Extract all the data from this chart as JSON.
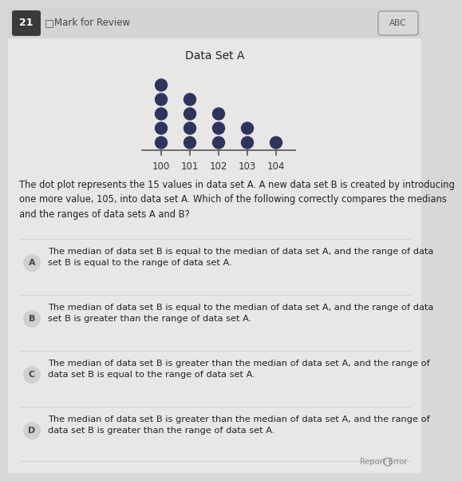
{
  "title": "Data Set A",
  "question_number": "21",
  "dot_data": {
    "100": 5,
    "101": 4,
    "102": 3,
    "103": 2,
    "104": 1
  },
  "x_tick_labels": [
    "100",
    "101",
    "102",
    "103",
    "104"
  ],
  "dot_color": "#2e3460",
  "background_color": "#d8d8d8",
  "page_color": "#e8e7e5",
  "header_bg": "#d0d0d0",
  "white": "#ffffff",
  "option_labels": [
    "A",
    "B",
    "C",
    "D"
  ],
  "option_texts": [
    "The median of data set B is equal to the median of data set A, and the range of data\nset B is equal to the range of data set A.",
    "The median of data set B is equal to the median of data set A, and the range of data\nset B is greater than the range of data set A.",
    "The median of data set B is greater than the median of data set A, and the range of\ndata set B is equal to the range of data set A.",
    "The median of data set B is greater than the median of data set A, and the range of\ndata set B is greater than the range of data set A."
  ],
  "intro_text": "The dot plot represents the 15 values in data set A. A new data set B is created by introducing\none more value, 105, into data set A. Which of the following correctly compares the medians\nand the ranges of data sets A and B?",
  "mark_review_text": "Mark for Review",
  "abc_text": "ABC",
  "report_error_text": "Report Error"
}
